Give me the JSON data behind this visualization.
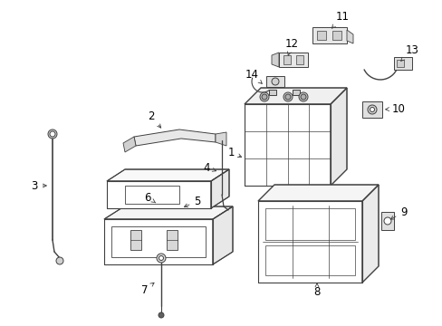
{
  "bg_color": "#ffffff",
  "line_color": "#404040",
  "label_color": "#000000",
  "fig_width": 4.89,
  "fig_height": 3.6,
  "dpi": 100,
  "lw": 0.7
}
